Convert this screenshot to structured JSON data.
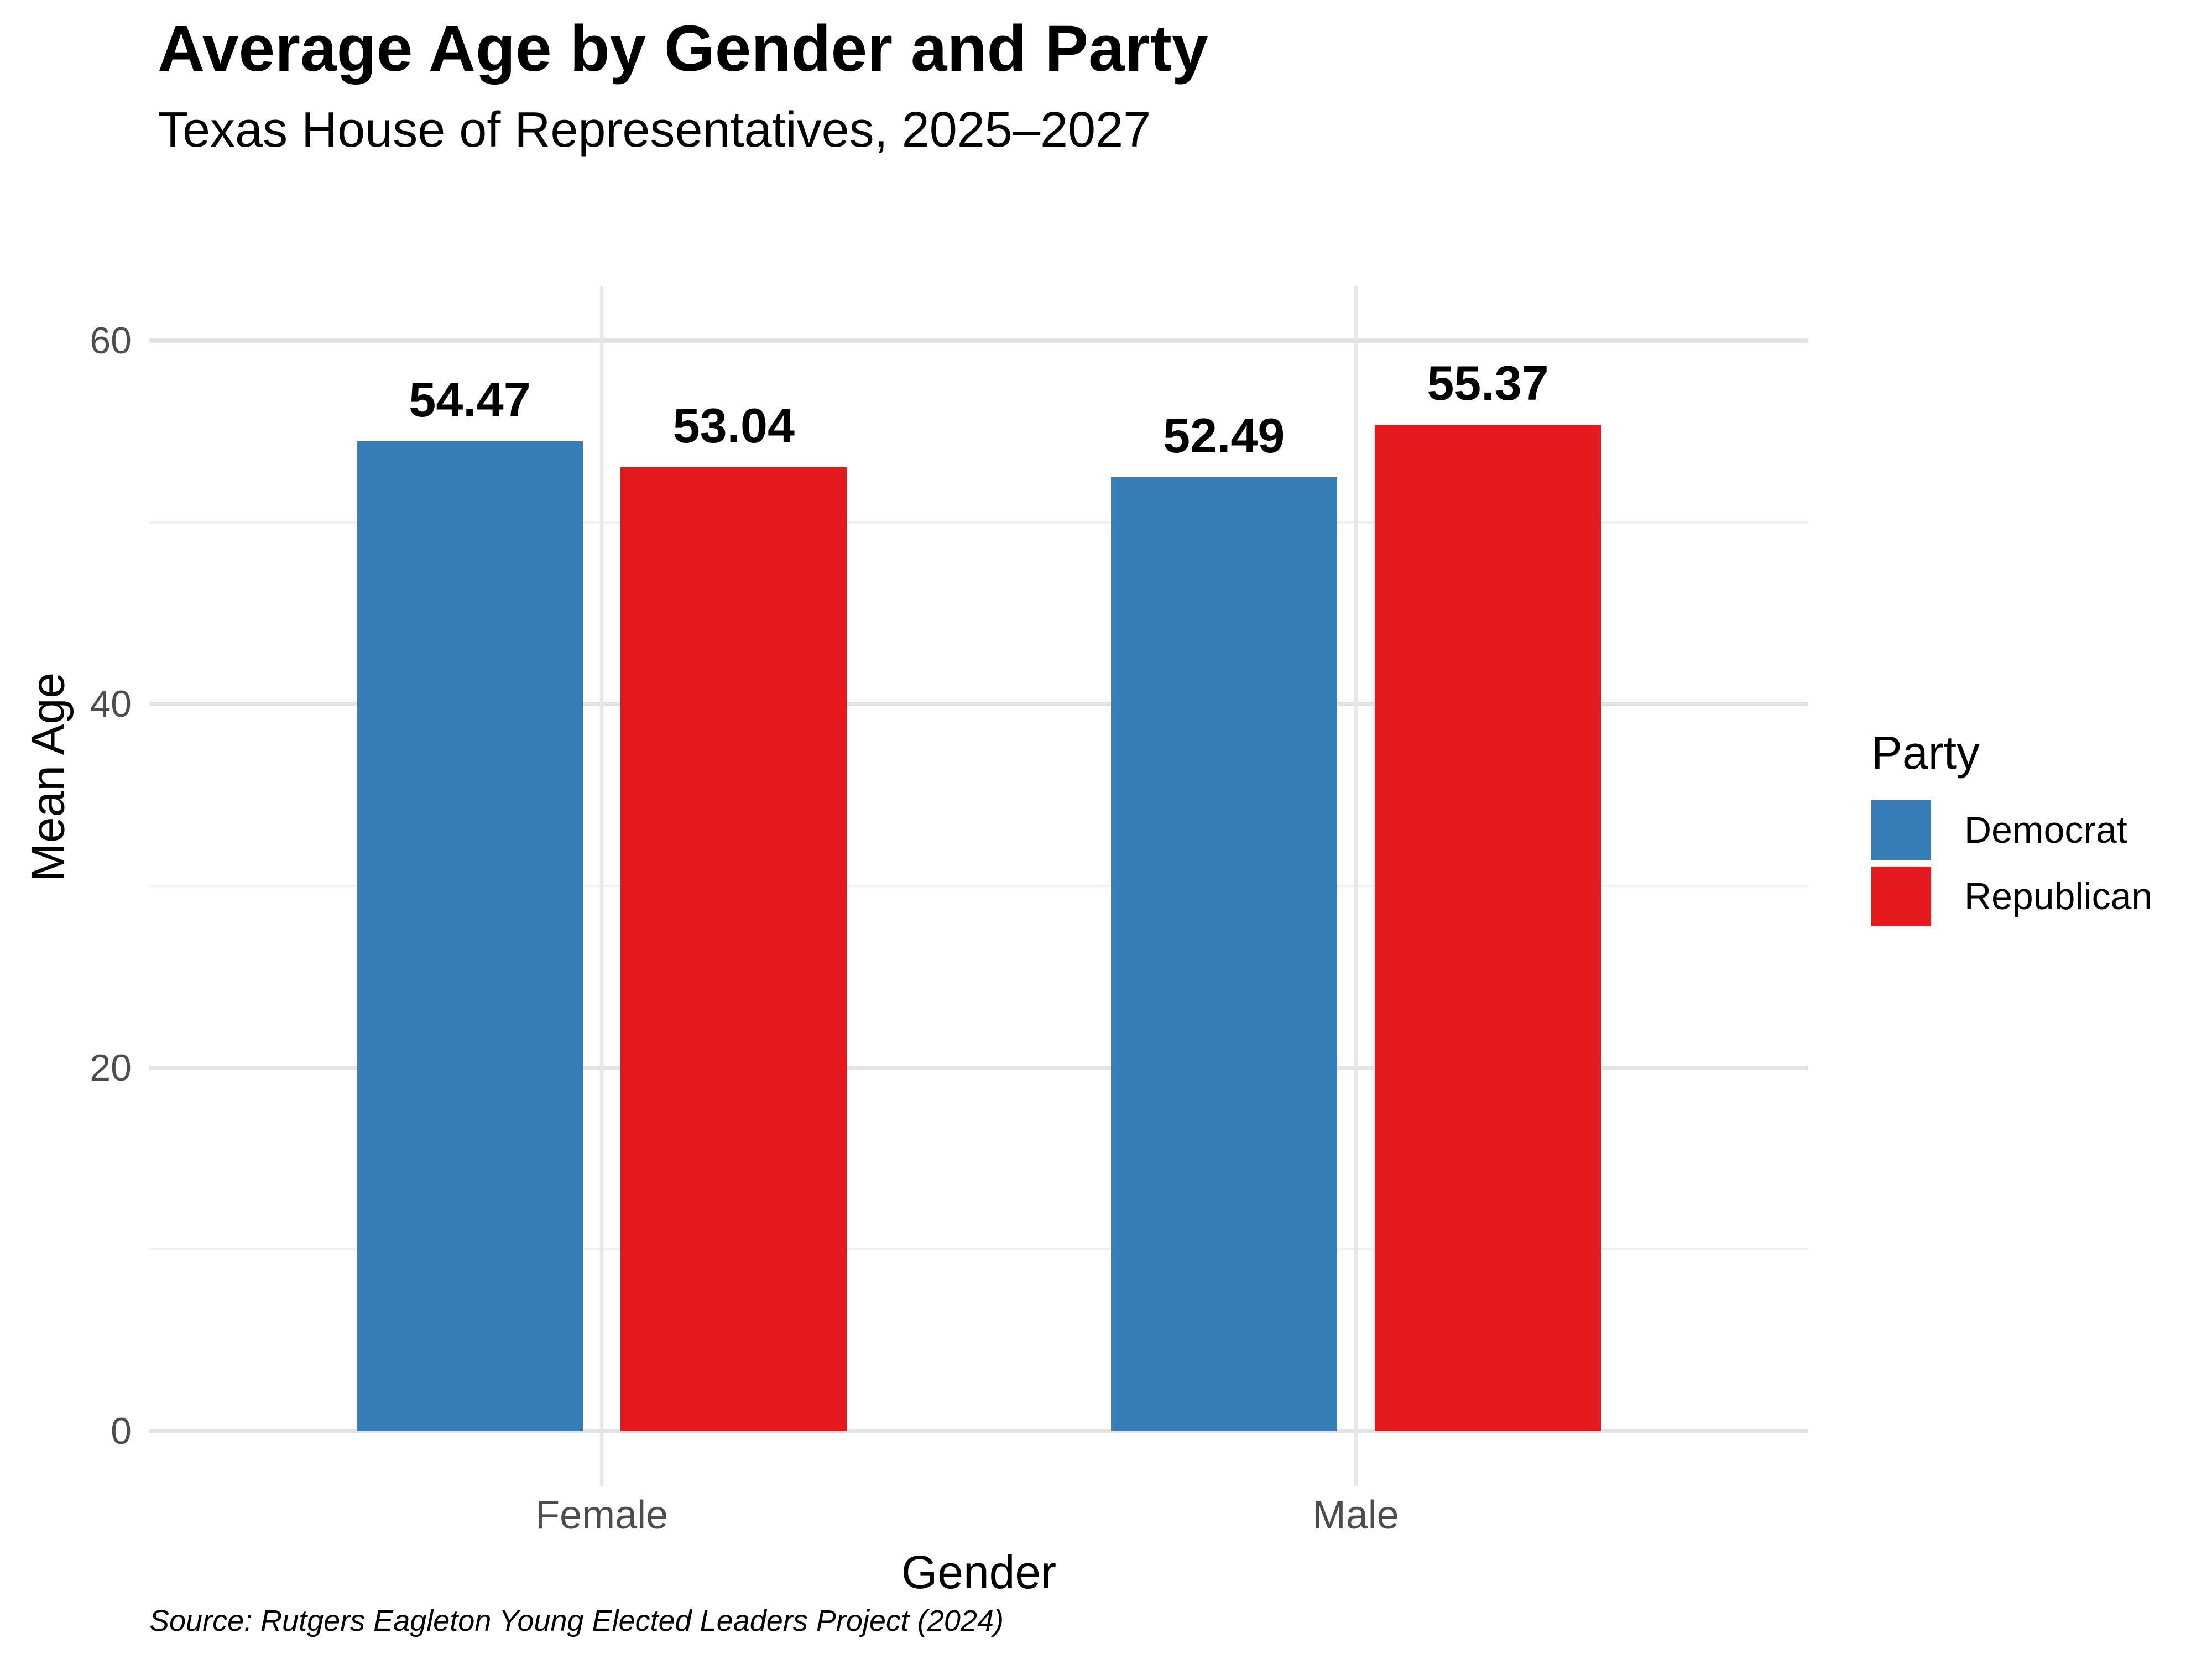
{
  "chart_data": {
    "type": "bar",
    "title": "Average Age by Gender and Party",
    "subtitle": "Texas House of Representatives, 2025–2027",
    "xlabel": "Gender",
    "ylabel": "Mean Age",
    "categories": [
      "Female",
      "Male"
    ],
    "series": [
      {
        "name": "Democrat",
        "color": "#377EB8",
        "values": [
          54.47,
          52.49
        ],
        "labels": [
          "54.47",
          "52.49"
        ]
      },
      {
        "name": "Republican",
        "color": "#E41A1C",
        "values": [
          53.04,
          55.37
        ],
        "labels": [
          "53.04",
          "55.37"
        ]
      }
    ],
    "ylim": [
      0,
      60
    ],
    "yticks": [
      0,
      20,
      40,
      60
    ],
    "yticks_minor": [
      10,
      30,
      50
    ],
    "legend_title": "Party",
    "legend_position": "right",
    "grid": true,
    "source": "Source: Rutgers Eagleton Young Elected Leaders Project (2024)"
  },
  "colors": {
    "democrat": "#377EB8",
    "republican": "#E41A1C",
    "tick_label": "#4D4D4D",
    "grid_major": "#E3E3E3",
    "grid_minor": "#F0F0F0",
    "background": "#FFFFFF",
    "text": "#000000"
  }
}
